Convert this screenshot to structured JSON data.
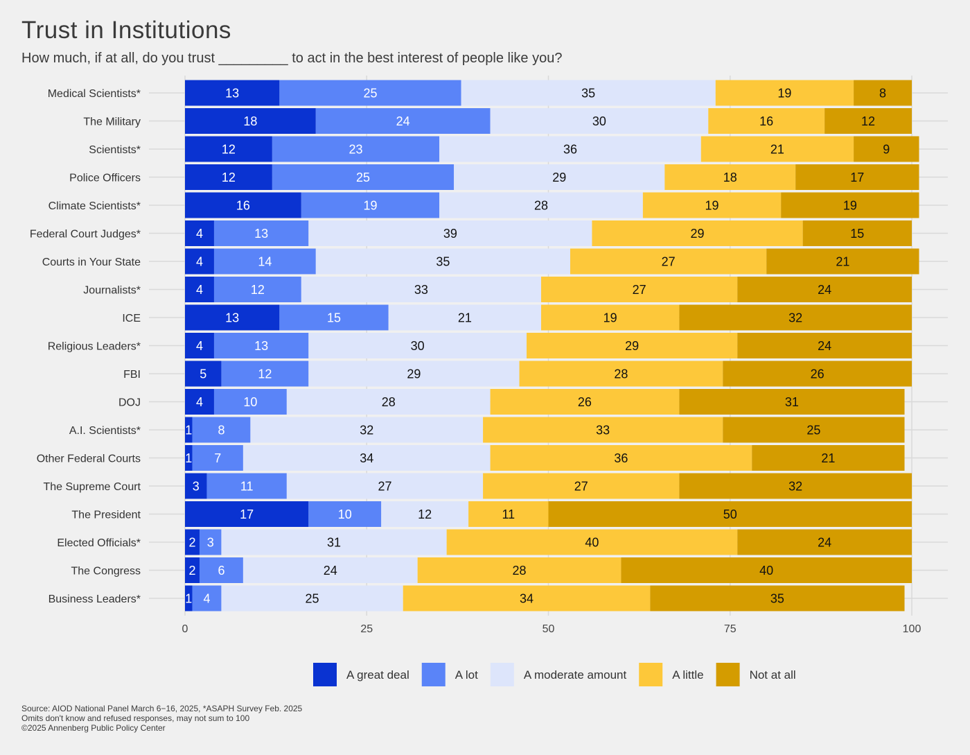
{
  "chart_data": {
    "type": "bar",
    "orientation": "horizontal",
    "stacked": true,
    "title": "Trust in Institutions",
    "subtitle": "How much, if at all, do you trust _________ to act in the best interest of people like you?",
    "xlim": [
      0,
      100
    ],
    "xticks": [
      0,
      25,
      50,
      75,
      100
    ],
    "grid": true,
    "legend_position": "bottom",
    "categories": [
      "Medical Scientists*",
      "The Military",
      "Scientists*",
      "Police Officers",
      "Climate Scientists*",
      "Federal Court Judges*",
      "Courts in Your State",
      "Journalists*",
      "ICE",
      "Religious Leaders*",
      "FBI",
      "DOJ",
      "A.I. Scientists*",
      "Other Federal Courts",
      "The Supreme Court",
      "The President",
      "Elected Officials*",
      "The Congress",
      "Business Leaders*"
    ],
    "series": [
      {
        "name": "A great deal",
        "color": "#0a33d1",
        "values": [
          13,
          18,
          12,
          12,
          16,
          4,
          4,
          4,
          13,
          4,
          5,
          4,
          1,
          1,
          3,
          17,
          2,
          2,
          1
        ]
      },
      {
        "name": "A lot",
        "color": "#5a84f8",
        "values": [
          25,
          24,
          23,
          25,
          19,
          13,
          14,
          12,
          15,
          13,
          12,
          10,
          8,
          7,
          11,
          10,
          3,
          6,
          4
        ]
      },
      {
        "name": "A moderate amount",
        "color": "#dde5fb",
        "values": [
          35,
          30,
          36,
          29,
          28,
          39,
          35,
          33,
          21,
          30,
          29,
          28,
          32,
          34,
          27,
          12,
          31,
          24,
          25
        ]
      },
      {
        "name": "A little",
        "color": "#fdc83a",
        "values": [
          19,
          16,
          21,
          18,
          19,
          29,
          27,
          27,
          19,
          29,
          28,
          26,
          33,
          36,
          27,
          11,
          40,
          28,
          34
        ]
      },
      {
        "name": "Not at all",
        "color": "#d49c00",
        "values": [
          8,
          12,
          9,
          17,
          19,
          15,
          21,
          24,
          32,
          24,
          26,
          31,
          25,
          21,
          32,
          50,
          24,
          40,
          35
        ]
      }
    ]
  },
  "footer": {
    "line1": "Source: AIOD National Panel March 6−16, 2025, *ASAPH Survey Feb. 2025",
    "line2": "Omits don't know and refused responses, may not sum to 100",
    "line3": "©2025 Annenberg Public Policy Center"
  }
}
